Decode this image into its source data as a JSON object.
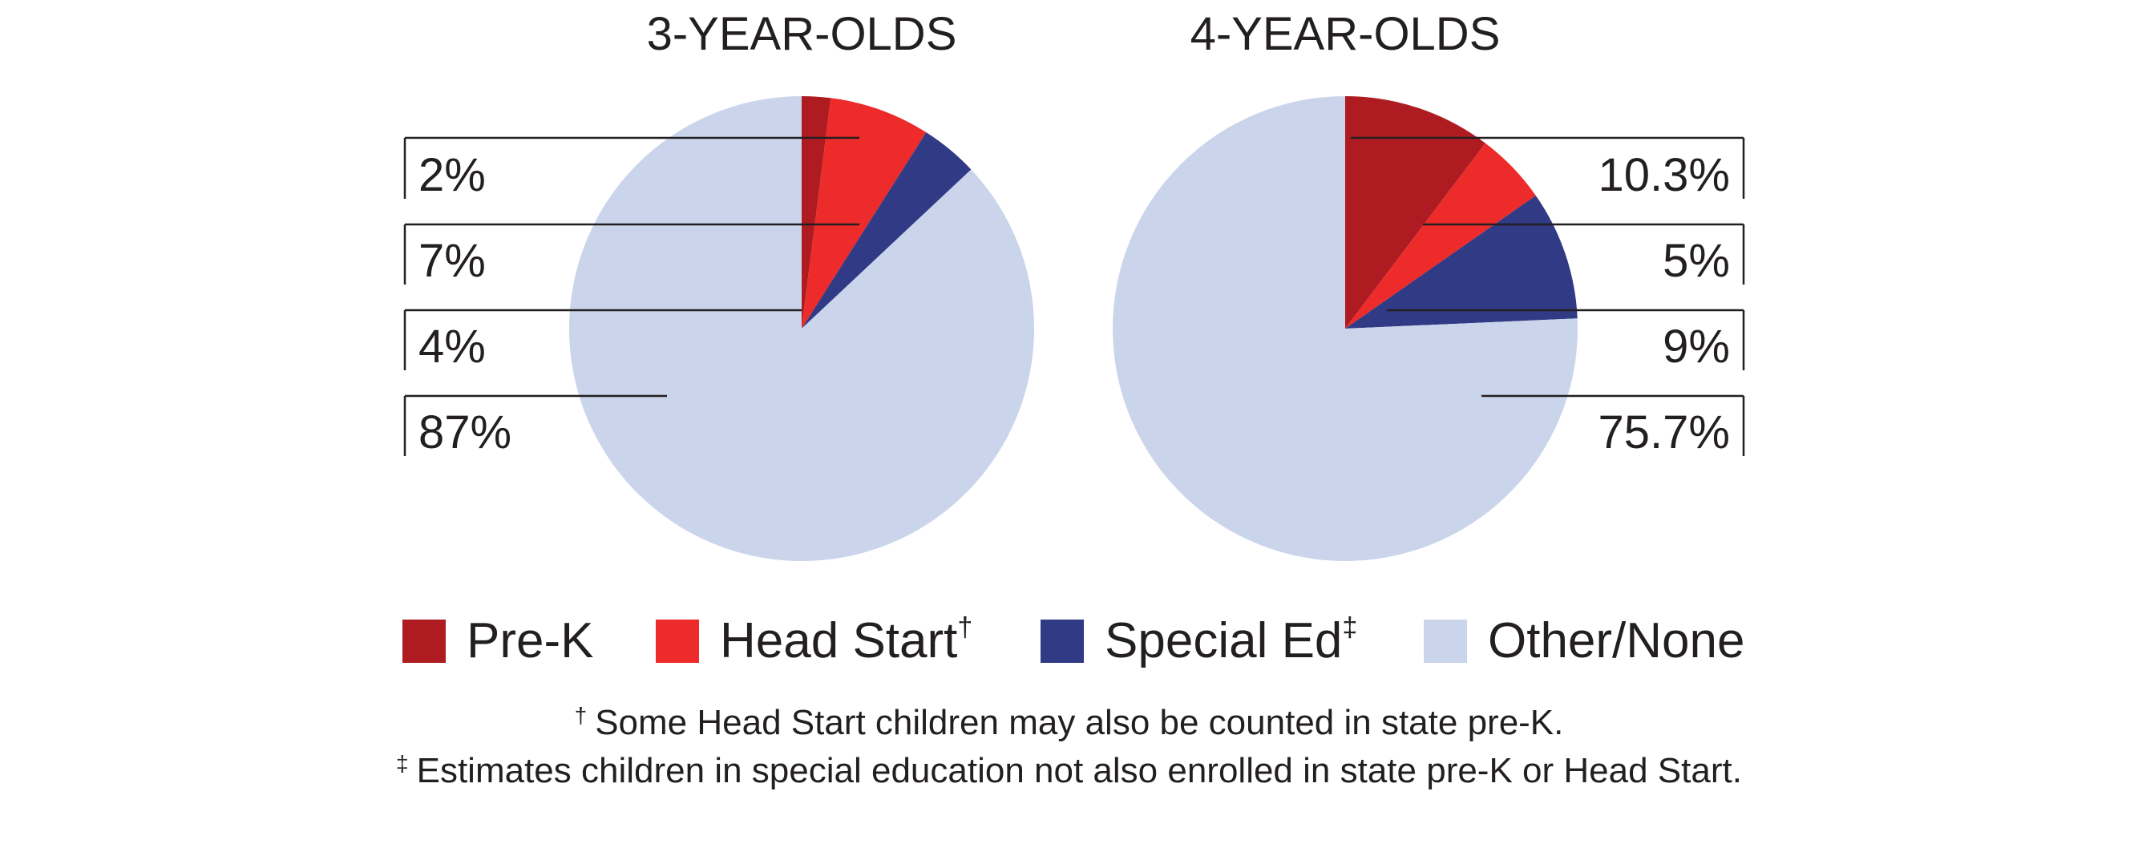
{
  "chart_data": [
    {
      "type": "pie",
      "title": "3-YEAR-OLDS",
      "categories": [
        "Pre-K",
        "Head Start",
        "Special Ed",
        "Other/None"
      ],
      "values": [
        2,
        7,
        4,
        87
      ],
      "labels": [
        "2%",
        "7%",
        "4%",
        "87%"
      ],
      "colors": [
        "#ae1c22",
        "#ed2b2a",
        "#313a85",
        "#cad5eb"
      ],
      "label_side": "left"
    },
    {
      "type": "pie",
      "title": "4-YEAR-OLDS",
      "categories": [
        "Pre-K",
        "Head Start",
        "Special Ed",
        "Other/None"
      ],
      "values": [
        10.3,
        5,
        9,
        75.7
      ],
      "labels": [
        "10.3%",
        "5%",
        "9%",
        "75.7%"
      ],
      "colors": [
        "#ae1c22",
        "#ed2b2a",
        "#313a85",
        "#cad5eb"
      ],
      "label_side": "right"
    }
  ],
  "legend": {
    "items": [
      {
        "label": "Pre-K",
        "mark": "",
        "color": "#ae1c22"
      },
      {
        "label": "Head Start",
        "mark": "†",
        "color": "#ed2b2a"
      },
      {
        "label": "Special Ed",
        "mark": "‡",
        "color": "#313a85"
      },
      {
        "label": "Other/None",
        "mark": "",
        "color": "#cad5eb"
      }
    ]
  },
  "footnotes": [
    {
      "mark": "†",
      "text": "Some Head Start children may also be counted in state pre-K."
    },
    {
      "mark": "‡",
      "text": "Estimates children in special education not also enrolled in state pre-K or Head Start."
    }
  ]
}
